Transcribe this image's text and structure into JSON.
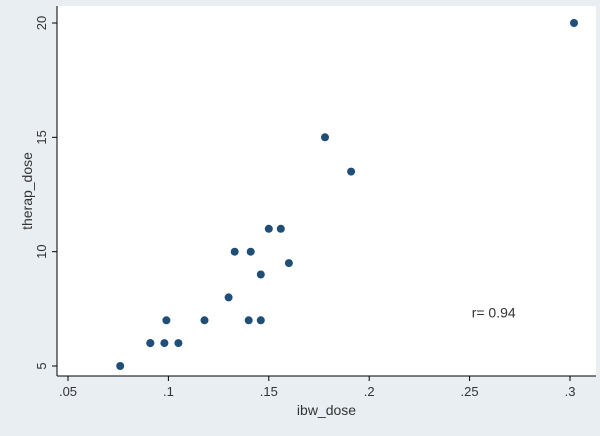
{
  "chart_data": {
    "type": "scatter",
    "xlabel": "ibw_dose",
    "ylabel": "therap_dose",
    "xlim": [
      0.05,
      0.3
    ],
    "ylim": [
      5,
      20
    ],
    "xticks": [
      {
        "value": 0.05,
        "label": ".05"
      },
      {
        "value": 0.1,
        "label": ".1"
      },
      {
        "value": 0.15,
        "label": ".15"
      },
      {
        "value": 0.2,
        "label": ".2"
      },
      {
        "value": 0.25,
        "label": ".25"
      },
      {
        "value": 0.3,
        "label": ".3"
      }
    ],
    "yticks": [
      {
        "value": 5,
        "label": "5"
      },
      {
        "value": 10,
        "label": "10"
      },
      {
        "value": 15,
        "label": "15"
      },
      {
        "value": 20,
        "label": "20"
      }
    ],
    "grid": false,
    "legend": "none",
    "annotation": {
      "text": "r= 0.94",
      "x": 0.262,
      "y": 7.35
    },
    "points": [
      {
        "x": 0.076,
        "y": 5
      },
      {
        "x": 0.091,
        "y": 6
      },
      {
        "x": 0.091,
        "y": 6
      },
      {
        "x": 0.098,
        "y": 6
      },
      {
        "x": 0.105,
        "y": 6
      },
      {
        "x": 0.099,
        "y": 7
      },
      {
        "x": 0.118,
        "y": 7
      },
      {
        "x": 0.13,
        "y": 8
      },
      {
        "x": 0.133,
        "y": 10
      },
      {
        "x": 0.14,
        "y": 7
      },
      {
        "x": 0.141,
        "y": 10
      },
      {
        "x": 0.146,
        "y": 7
      },
      {
        "x": 0.146,
        "y": 9
      },
      {
        "x": 0.15,
        "y": 11
      },
      {
        "x": 0.156,
        "y": 11
      },
      {
        "x": 0.16,
        "y": 9.5
      },
      {
        "x": 0.178,
        "y": 15
      },
      {
        "x": 0.191,
        "y": 13.5
      },
      {
        "x": 0.302,
        "y": 20
      }
    ],
    "colors": {
      "background": "#e8eef2",
      "plot_background": "#ffffff",
      "marker": "#1f4e79",
      "axis": "#000000"
    }
  }
}
